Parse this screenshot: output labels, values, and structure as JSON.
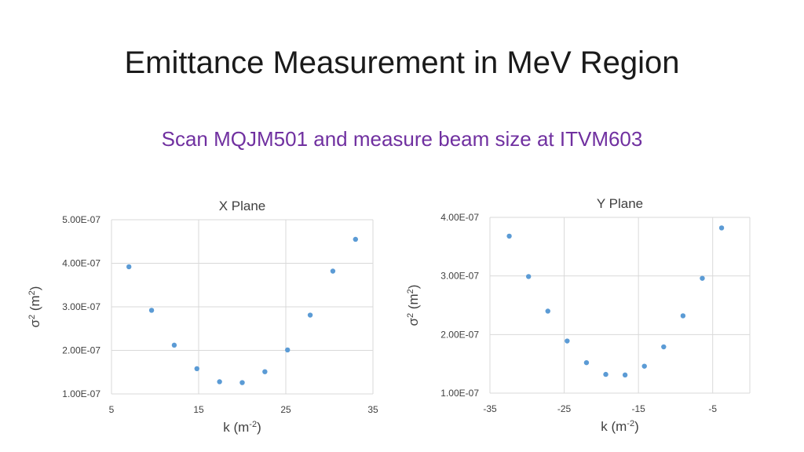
{
  "slide": {
    "title": "Emittance Measurement in MeV Region",
    "subtitle": "Scan MQJM501 and measure beam size at ITVM603"
  },
  "colors": {
    "point": "#5b9bd5",
    "grid": "#d9d9d9",
    "subtitle": "#7030a0"
  },
  "chart_data": [
    {
      "type": "scatter",
      "title": "X Plane",
      "xlabel": "k (m-2)",
      "ylabel": "σ2 (m2)",
      "xlim": [
        5,
        35
      ],
      "ylim": [
        1e-07,
        5e-07
      ],
      "xticks": [
        5,
        15,
        25,
        35
      ],
      "yticks": [
        1e-07,
        2e-07,
        3e-07,
        4e-07,
        5e-07
      ],
      "ytick_labels": [
        "1.00E-07",
        "2.00E-07",
        "3.00E-07",
        "4.00E-07",
        "5.00E-07"
      ],
      "grid": true,
      "points": [
        {
          "x": 7.0,
          "y": 3.92e-07
        },
        {
          "x": 9.6,
          "y": 2.92e-07
        },
        {
          "x": 12.2,
          "y": 2.12e-07
        },
        {
          "x": 14.8,
          "y": 1.58e-07
        },
        {
          "x": 17.4,
          "y": 1.28e-07
        },
        {
          "x": 20.0,
          "y": 1.26e-07
        },
        {
          "x": 22.6,
          "y": 1.51e-07
        },
        {
          "x": 25.2,
          "y": 2.01e-07
        },
        {
          "x": 27.8,
          "y": 2.81e-07
        },
        {
          "x": 30.4,
          "y": 3.82e-07
        },
        {
          "x": 33.0,
          "y": 4.55e-07
        }
      ]
    },
    {
      "type": "scatter",
      "title": "Y Plane",
      "xlabel": "k (m-2)",
      "ylabel": "σ2 (m2)",
      "xlim": [
        -35,
        0
      ],
      "ylim": [
        1e-07,
        4e-07
      ],
      "xticks": [
        -35,
        -25,
        -15,
        -5
      ],
      "yticks": [
        1e-07,
        2e-07,
        3e-07,
        4e-07
      ],
      "ytick_labels": [
        "1.00E-07",
        "2.00E-07",
        "3.00E-07",
        "4.00E-07"
      ],
      "grid": true,
      "points": [
        {
          "x": -32.4,
          "y": 3.68e-07
        },
        {
          "x": -29.8,
          "y": 2.99e-07
        },
        {
          "x": -27.2,
          "y": 2.4e-07
        },
        {
          "x": -24.6,
          "y": 1.89e-07
        },
        {
          "x": -22.0,
          "y": 1.52e-07
        },
        {
          "x": -19.4,
          "y": 1.32e-07
        },
        {
          "x": -16.8,
          "y": 1.31e-07
        },
        {
          "x": -14.2,
          "y": 1.46e-07
        },
        {
          "x": -11.6,
          "y": 1.79e-07
        },
        {
          "x": -9.0,
          "y": 2.32e-07
        },
        {
          "x": -6.4,
          "y": 2.96e-07
        },
        {
          "x": -3.8,
          "y": 3.82e-07
        }
      ]
    }
  ]
}
